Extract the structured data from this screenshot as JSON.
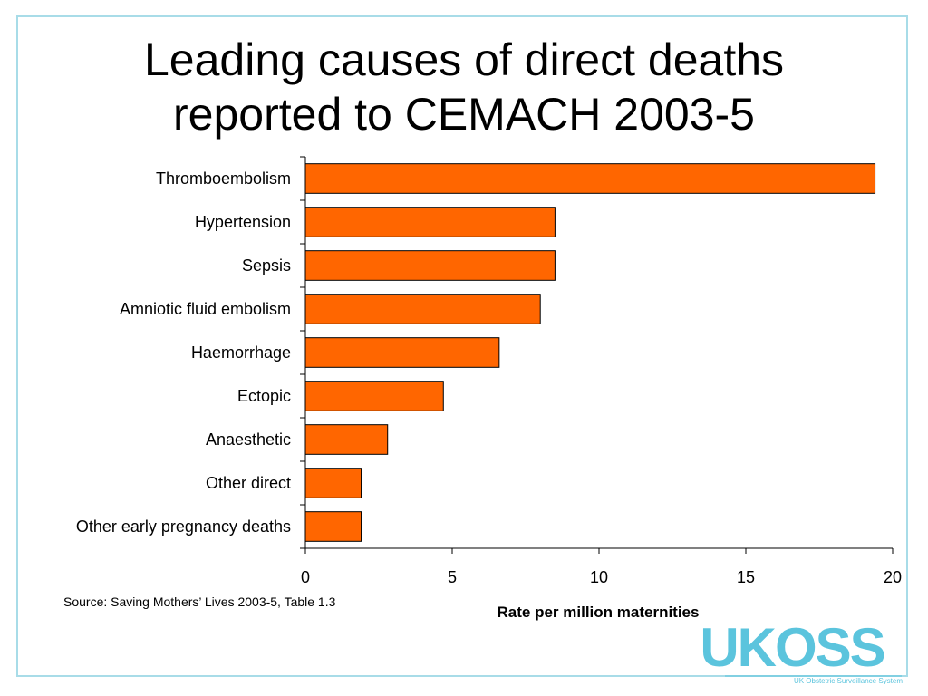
{
  "title": {
    "line1": "Leading causes of direct deaths",
    "line2": "reported to CEMACH 2003-5"
  },
  "source": "Source: Saving Mothers’ Lives 2003-5, Table 1.3",
  "logo": {
    "text": "UKOSS",
    "subtitle": "UK Obstetric Surveillance System",
    "color": "#5bc4dd"
  },
  "chart_data": {
    "type": "bar",
    "orientation": "horizontal",
    "categories": [
      "Thromboembolism",
      "Hypertension",
      "Sepsis",
      "Amniotic fluid embolism",
      "Haemorrhage",
      "Ectopic",
      "Anaesthetic",
      "Other direct",
      "Other early pregnancy deaths"
    ],
    "values": [
      19.4,
      8.5,
      8.5,
      8.0,
      6.6,
      4.7,
      2.8,
      1.9,
      1.9
    ],
    "xlabel": "Rate per million maternities",
    "ylabel": "",
    "xlim": [
      0,
      20
    ],
    "xticks": [
      0,
      5,
      10,
      15,
      20
    ],
    "bar_color": "#ff6600",
    "grid": false
  }
}
